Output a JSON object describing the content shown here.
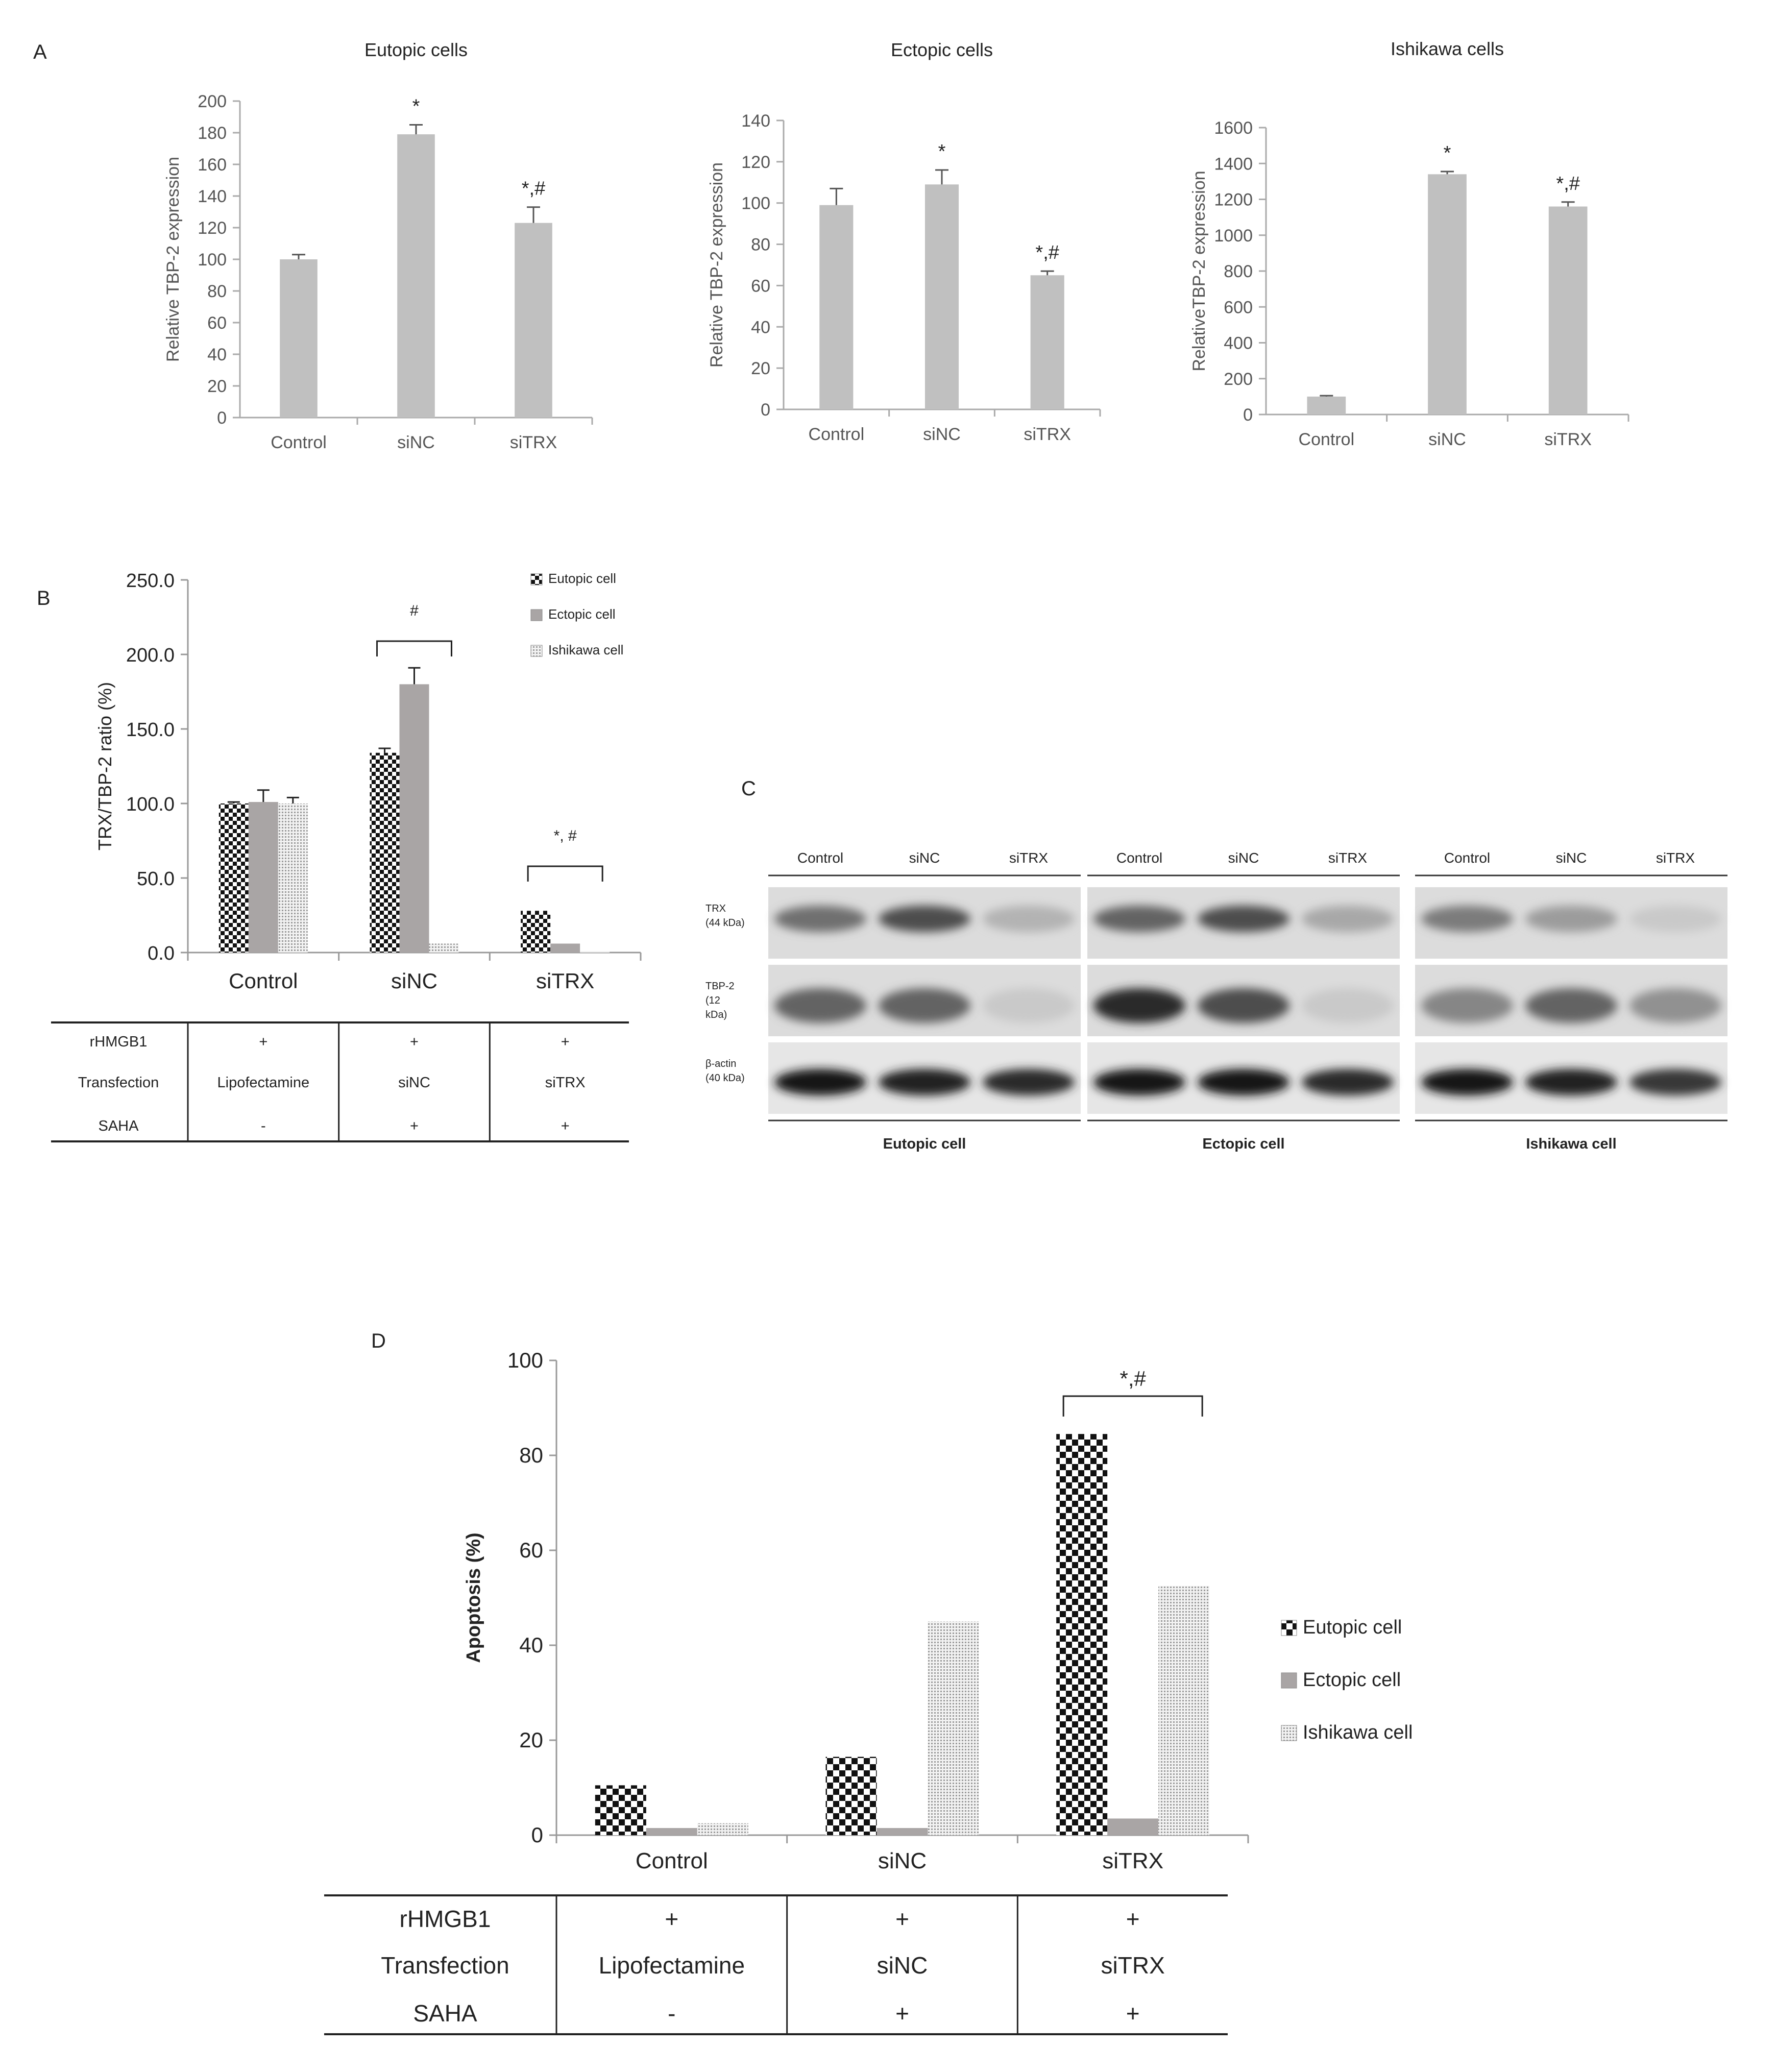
{
  "panel_labels": {
    "a": "A",
    "b": "B",
    "c": "C",
    "d": "D"
  },
  "chart_data": [
    {
      "id": "A1",
      "type": "bar",
      "title": "Eutopic cells",
      "ylabel": "Relative TBP-2 expression",
      "categories": [
        "Control",
        "siNC",
        "siTRX"
      ],
      "values": [
        100,
        179,
        123
      ],
      "errors": [
        3,
        6,
        10
      ],
      "annotations": [
        "",
        "*",
        "*,#"
      ],
      "ylim": [
        0,
        200
      ],
      "yticks": [
        0,
        20,
        40,
        60,
        80,
        100,
        120,
        140,
        160,
        180,
        200
      ],
      "color": "#c0c0c0"
    },
    {
      "id": "A2",
      "type": "bar",
      "title": "Ectopic cells",
      "ylabel": "Relative TBP-2 expression",
      "categories": [
        "Control",
        "siNC",
        "siTRX"
      ],
      "values": [
        99,
        109,
        65
      ],
      "errors": [
        8,
        7,
        2
      ],
      "annotations": [
        "",
        "*",
        "*,#"
      ],
      "ylim": [
        0,
        140
      ],
      "yticks": [
        0,
        20,
        40,
        60,
        80,
        100,
        120,
        140
      ],
      "color": "#c0c0c0"
    },
    {
      "id": "A3",
      "type": "bar",
      "title": "Ishikawa cells",
      "ylabel": "RelativeTBP-2 expression",
      "categories": [
        "Control",
        "siNC",
        "siTRX"
      ],
      "values": [
        100,
        1340,
        1160
      ],
      "errors": [
        5,
        15,
        25
      ],
      "annotations": [
        "",
        "*",
        "*,#"
      ],
      "ylim": [
        0,
        1600
      ],
      "yticks": [
        0,
        200,
        400,
        600,
        800,
        1000,
        1200,
        1400,
        1600
      ],
      "color": "#c0c0c0"
    },
    {
      "id": "B",
      "type": "bar",
      "ylabel": "TRX/TBP-2 ratio (%)",
      "categories": [
        "Control",
        "siNC",
        "siTRX"
      ],
      "series": [
        {
          "name": "Eutopic cell",
          "values": [
            100,
            134,
            28
          ],
          "errors": [
            1,
            3,
            0
          ]
        },
        {
          "name": "Ectopic cell",
          "values": [
            101,
            180,
            6
          ],
          "errors": [
            8,
            11,
            0
          ]
        },
        {
          "name": "Ishikawa cell",
          "values": [
            100,
            6,
            1
          ],
          "errors": [
            4,
            0,
            0
          ]
        }
      ],
      "ylim": [
        0,
        250
      ],
      "yticks": [
        "0.0",
        "50.0",
        "100.0",
        "150.0",
        "200.0",
        "250.0"
      ],
      "brackets": [
        {
          "category": "siNC",
          "label": "#"
        },
        {
          "category": "siTRX",
          "label": "*, #"
        }
      ],
      "legend": "top-right",
      "treatment_table": {
        "rows": [
          {
            "label": "rHMGB1",
            "cells": [
              "+",
              "+",
              "+"
            ]
          },
          {
            "label": "Transfection",
            "cells": [
              "Lipofectamine",
              "siNC",
              "siTRX"
            ]
          },
          {
            "label": "SAHA",
            "cells": [
              "-",
              "+",
              "+"
            ]
          }
        ]
      }
    },
    {
      "id": "D",
      "type": "bar",
      "ylabel": "Apoptosis (%)",
      "categories": [
        "Control",
        "siNC",
        "siTRX"
      ],
      "series": [
        {
          "name": "Eutopic cell",
          "values": [
            10.5,
            16.5,
            84.5
          ]
        },
        {
          "name": "Ectopic cell",
          "values": [
            1.5,
            1.5,
            3.5
          ]
        },
        {
          "name": "Ishikawa cell",
          "values": [
            2.5,
            45,
            52.5
          ]
        }
      ],
      "ylim": [
        0,
        100
      ],
      "yticks": [
        0,
        20,
        40,
        60,
        80,
        100
      ],
      "brackets": [
        {
          "category": "siTRX",
          "label": "*,#"
        }
      ],
      "legend": "right",
      "treatment_table": {
        "rows": [
          {
            "label": "rHMGB1",
            "cells": [
              "+",
              "+",
              "+"
            ]
          },
          {
            "label": "Transfection",
            "cells": [
              "Lipofectamine",
              "siNC",
              "siTRX"
            ]
          },
          {
            "label": "SAHA",
            "cells": [
              "-",
              "+",
              "+"
            ]
          }
        ]
      }
    }
  ],
  "western_blot": {
    "groups": [
      {
        "name": "Eutopic cell",
        "lanes": [
          "Control",
          "siNC",
          "siTRX"
        ]
      },
      {
        "name": "Ectopic cell",
        "lanes": [
          "Control",
          "siNC",
          "siTRX"
        ]
      },
      {
        "name": "Ishikawa cell",
        "lanes": [
          "Control",
          "siNC",
          "siTRX"
        ]
      }
    ],
    "proteins": [
      {
        "label1": "TRX",
        "label2": "(44 kDa)",
        "label3": ""
      },
      {
        "label1": "TBP-2",
        "label2": "(12",
        "label3": "kDa)"
      },
      {
        "label1": "β-actin",
        "label2": "(40 kDa)",
        "label3": ""
      }
    ],
    "intensity": [
      [
        [
          0.55,
          0.7,
          0.25
        ],
        [
          0.6,
          0.7,
          0.3
        ],
        [
          0.5,
          0.35,
          0.15
        ]
      ],
      [
        [
          0.6,
          0.6,
          0.15
        ],
        [
          0.85,
          0.7,
          0.15
        ],
        [
          0.45,
          0.6,
          0.4
        ]
      ],
      [
        [
          0.95,
          0.9,
          0.85
        ],
        [
          0.95,
          0.95,
          0.85
        ],
        [
          0.95,
          0.9,
          0.8
        ]
      ]
    ]
  }
}
